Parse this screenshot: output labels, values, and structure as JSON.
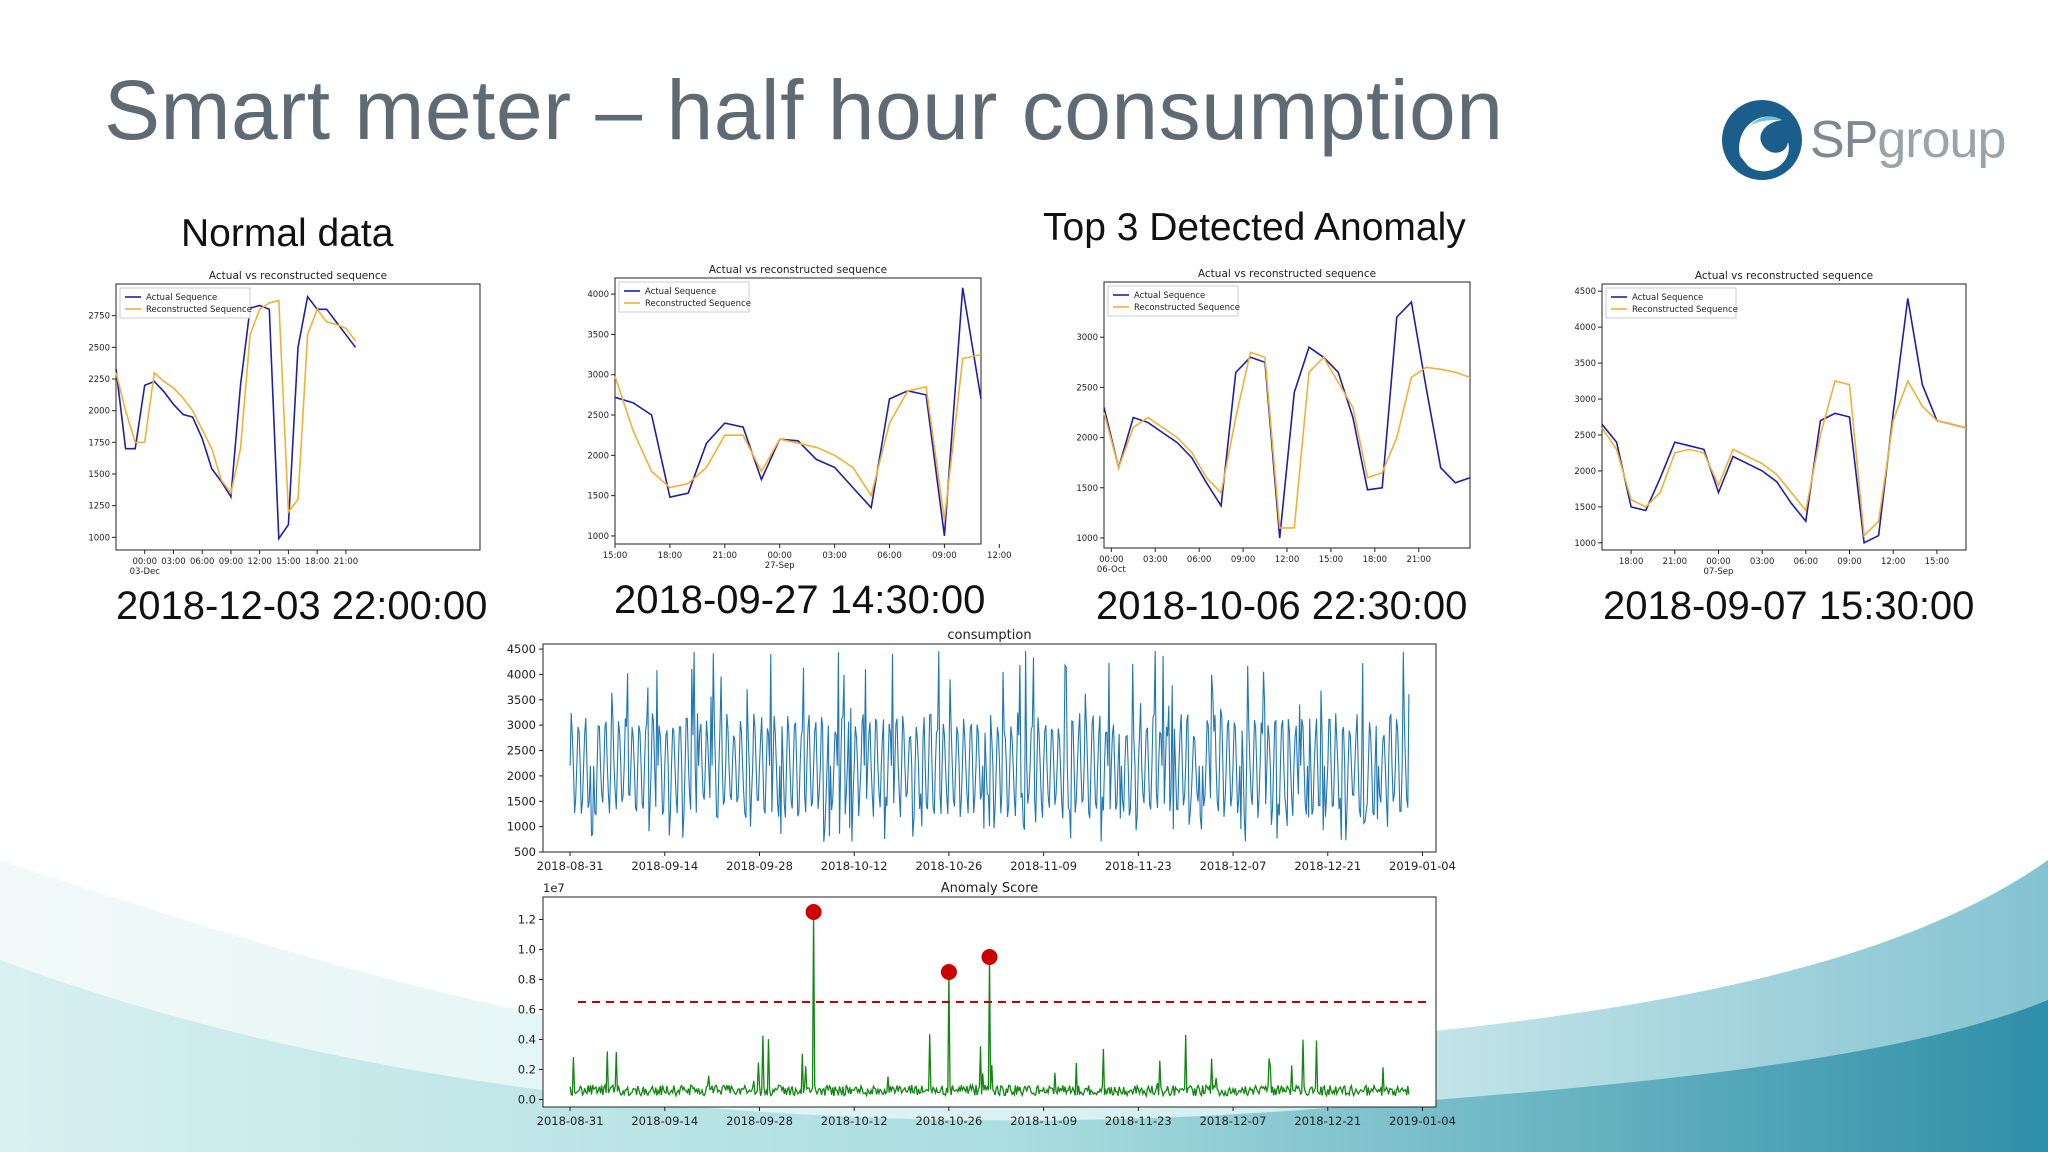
{
  "slide": {
    "title": "Smart meter – half hour consumption",
    "logo_text_sp": "SP",
    "logo_text_group": "group",
    "normal_heading": "Normal data",
    "anomaly_heading": "Top 3 Detected Anomaly"
  },
  "colors": {
    "actual": "#1f1fa8",
    "reconstructed": "#f2b134",
    "consumption": "#1f77b4",
    "score": "#118811",
    "threshold": "#c00000",
    "marker": "#cc0000",
    "title_text": "#5f6b74",
    "wave": "#3ab0b8"
  },
  "chart_data": [
    {
      "type": "line",
      "title": "Actual vs reconstructed sequence",
      "caption": "2018-12-03 22:00:00",
      "legend": [
        "Actual Sequence",
        "Reconstructed Sequence"
      ],
      "legend_position": "top-left",
      "ylim": [
        900,
        3000
      ],
      "yticks": [
        1000,
        1250,
        1500,
        1750,
        2000,
        2250,
        2500,
        2750
      ],
      "xlim": [
        0,
        76
      ],
      "xticks": [
        {
          "x": 6,
          "label": "00:00",
          "sub": "03-Dec"
        },
        {
          "x": 12,
          "label": "03:00"
        },
        {
          "x": 18,
          "label": "06:00"
        },
        {
          "x": 24,
          "label": "09:00"
        },
        {
          "x": 30,
          "label": "12:00"
        },
        {
          "x": 36,
          "label": "15:00"
        },
        {
          "x": 42,
          "label": "18:00"
        },
        {
          "x": 48,
          "label": "21:00"
        }
      ],
      "series": [
        {
          "name": "Actual Sequence",
          "x": [
            0,
            2,
            4,
            6,
            8,
            10,
            12,
            14,
            16,
            18,
            20,
            22,
            24,
            26,
            28,
            30,
            32,
            34,
            36,
            38,
            40,
            42,
            44,
            46,
            48,
            50
          ],
          "y": [
            2330,
            1700,
            1700,
            2200,
            2230,
            2150,
            2050,
            1970,
            1950,
            1780,
            1540,
            1440,
            1320,
            2200,
            2810,
            2830,
            2800,
            990,
            1100,
            2500,
            2900,
            2800,
            2800,
            2700,
            2600,
            2500
          ]
        },
        {
          "name": "Reconstructed Sequence",
          "x": [
            0,
            2,
            4,
            6,
            8,
            10,
            12,
            14,
            16,
            18,
            20,
            22,
            24,
            26,
            28,
            30,
            32,
            34,
            36,
            38,
            40,
            42,
            44,
            46,
            48,
            50
          ],
          "y": [
            2300,
            2000,
            1750,
            1750,
            2300,
            2230,
            2180,
            2100,
            2000,
            1850,
            1700,
            1450,
            1350,
            1700,
            2600,
            2800,
            2850,
            2870,
            1200,
            1300,
            2600,
            2800,
            2700,
            2680,
            2650,
            2550
          ]
        }
      ]
    },
    {
      "type": "line",
      "title": "Actual vs reconstructed sequence",
      "caption": "2018-09-27 14:30:00",
      "legend": [
        "Actual Sequence",
        "Reconstructed Sequence"
      ],
      "legend_position": "top-left",
      "ylim": [
        900,
        4200
      ],
      "yticks": [
        1000,
        1500,
        2000,
        2500,
        3000,
        3500,
        4000
      ],
      "xlim": [
        0,
        40
      ],
      "xticks": [
        {
          "x": 0,
          "label": "15:00"
        },
        {
          "x": 6,
          "label": "18:00"
        },
        {
          "x": 12,
          "label": "21:00"
        },
        {
          "x": 18,
          "label": "00:00",
          "sub": "27-Sep"
        },
        {
          "x": 24,
          "label": "03:00"
        },
        {
          "x": 30,
          "label": "06:00"
        },
        {
          "x": 36,
          "label": "09:00"
        },
        {
          "x": 42,
          "label": "12:00"
        }
      ],
      "series": [
        {
          "name": "Actual Sequence",
          "x": [
            0,
            2,
            4,
            6,
            8,
            10,
            12,
            14,
            16,
            18,
            20,
            22,
            24,
            26,
            28,
            30,
            32,
            34,
            36,
            38,
            40
          ],
          "y": [
            2720,
            2650,
            2500,
            1480,
            1530,
            2150,
            2400,
            2350,
            1700,
            2200,
            2180,
            1950,
            1850,
            1600,
            1350,
            2700,
            2800,
            2750,
            1000,
            4080,
            2700
          ]
        },
        {
          "name": "Reconstructed Sequence",
          "x": [
            0,
            2,
            4,
            6,
            8,
            10,
            12,
            14,
            16,
            18,
            20,
            22,
            24,
            26,
            28,
            30,
            32,
            34,
            36,
            38,
            40
          ],
          "y": [
            2980,
            2300,
            1800,
            1600,
            1650,
            1850,
            2250,
            2250,
            1800,
            2200,
            2150,
            2100,
            2000,
            1850,
            1500,
            2400,
            2800,
            2850,
            1200,
            3200,
            3250
          ]
        }
      ]
    },
    {
      "type": "line",
      "title": "Actual vs reconstructed sequence",
      "caption": "2018-10-06 22:30:00",
      "legend": [
        "Actual Sequence",
        "Reconstructed Sequence"
      ],
      "legend_position": "top-left",
      "ylim": [
        900,
        3550
      ],
      "yticks": [
        1000,
        1500,
        2000,
        2500,
        3000
      ],
      "xlim": [
        0,
        50
      ],
      "xticks": [
        {
          "x": 1,
          "label": "00:00",
          "sub": "06-Oct"
        },
        {
          "x": 7,
          "label": "03:00"
        },
        {
          "x": 13,
          "label": "06:00"
        },
        {
          "x": 19,
          "label": "09:00"
        },
        {
          "x": 25,
          "label": "12:00"
        },
        {
          "x": 31,
          "label": "15:00"
        },
        {
          "x": 37,
          "label": "18:00"
        },
        {
          "x": 43,
          "label": "21:00"
        }
      ],
      "series": [
        {
          "name": "Actual Sequence",
          "x": [
            0,
            2,
            4,
            6,
            8,
            10,
            12,
            14,
            16,
            18,
            20,
            22,
            24,
            26,
            28,
            30,
            32,
            34,
            36,
            38,
            40,
            42,
            44,
            46,
            48,
            50
          ],
          "y": [
            2300,
            1700,
            2200,
            2150,
            2050,
            1950,
            1800,
            1550,
            1320,
            2650,
            2800,
            2750,
            1000,
            2450,
            2900,
            2800,
            2650,
            2200,
            1480,
            1500,
            3200,
            3350,
            2500,
            1700,
            1550,
            1600
          ]
        },
        {
          "name": "Reconstructed Sequence",
          "x": [
            0,
            2,
            4,
            6,
            8,
            10,
            12,
            14,
            16,
            18,
            20,
            22,
            24,
            26,
            28,
            30,
            32,
            34,
            36,
            38,
            40,
            42,
            44,
            46,
            48,
            50
          ],
          "y": [
            2250,
            1700,
            2100,
            2200,
            2100,
            2000,
            1850,
            1600,
            1450,
            2200,
            2850,
            2800,
            1100,
            1100,
            2650,
            2800,
            2550,
            2300,
            1600,
            1650,
            2000,
            2600,
            2700,
            2680,
            2650,
            2600
          ]
        }
      ]
    },
    {
      "type": "line",
      "title": "Actual vs reconstructed sequence",
      "caption": "2018-09-07 15:30:00",
      "legend": [
        "Actual Sequence",
        "Reconstructed Sequence"
      ],
      "legend_position": "top-left",
      "ylim": [
        900,
        4600
      ],
      "yticks": [
        1000,
        1500,
        2000,
        2500,
        3000,
        3500,
        4000,
        4500
      ],
      "xlim": [
        0,
        50
      ],
      "xticks": [
        {
          "x": 4,
          "label": "18:00"
        },
        {
          "x": 10,
          "label": "21:00"
        },
        {
          "x": 16,
          "label": "00:00",
          "sub": "07-Sep"
        },
        {
          "x": 22,
          "label": "03:00"
        },
        {
          "x": 28,
          "label": "06:00"
        },
        {
          "x": 34,
          "label": "09:00"
        },
        {
          "x": 40,
          "label": "12:00"
        },
        {
          "x": 46,
          "label": "15:00"
        }
      ],
      "series": [
        {
          "name": "Actual Sequence",
          "x": [
            0,
            2,
            4,
            6,
            8,
            10,
            12,
            14,
            16,
            18,
            20,
            22,
            24,
            26,
            28,
            30,
            32,
            34,
            36,
            38,
            40,
            42,
            44,
            46,
            48,
            50
          ],
          "y": [
            2650,
            2400,
            1500,
            1450,
            1900,
            2400,
            2350,
            2300,
            1700,
            2200,
            2100,
            2000,
            1850,
            1550,
            1300,
            2700,
            2800,
            2750,
            1000,
            1100,
            2800,
            4400,
            3200,
            2700,
            2650,
            2600
          ]
        },
        {
          "name": "Reconstructed Sequence",
          "x": [
            0,
            2,
            4,
            6,
            8,
            10,
            12,
            14,
            16,
            18,
            20,
            22,
            24,
            26,
            28,
            30,
            32,
            34,
            36,
            38,
            40,
            42,
            44,
            46,
            48,
            50
          ],
          "y": [
            2600,
            2300,
            1600,
            1500,
            1700,
            2250,
            2300,
            2250,
            1800,
            2300,
            2200,
            2100,
            1950,
            1700,
            1450,
            2500,
            3250,
            3200,
            1100,
            1300,
            2700,
            3250,
            2900,
            2700,
            2650,
            2600
          ]
        }
      ]
    },
    {
      "type": "line",
      "title": "consumption",
      "ylim": [
        500,
        4600
      ],
      "yticks": [
        500,
        1000,
        1500,
        2000,
        2500,
        3000,
        3500,
        4000,
        4500
      ],
      "xlim": [
        "2018-08-27",
        "2019-01-06"
      ],
      "xticks": [
        "2018-08-31",
        "2018-09-14",
        "2018-09-28",
        "2018-10-12",
        "2018-10-26",
        "2018-11-09",
        "2018-11-23",
        "2018-12-07",
        "2018-12-21",
        "2019-01-04"
      ],
      "series": [
        {
          "name": "consumption",
          "x_range": [
            "2018-08-31",
            "2019-01-02"
          ],
          "y_min": 700,
          "y_max": 4550,
          "y_typical_low": 1200,
          "y_typical_high": 3200
        }
      ]
    },
    {
      "type": "line",
      "title": "Anomaly Score",
      "yunit": "1e7",
      "ylim": [
        -0.05,
        1.35
      ],
      "yticks": [
        0.0,
        0.2,
        0.4,
        0.6,
        0.8,
        1.0,
        1.2
      ],
      "xlim": [
        "2018-08-27",
        "2019-01-06"
      ],
      "xticks": [
        "2018-08-31",
        "2018-09-14",
        "2018-09-28",
        "2018-10-12",
        "2018-10-26",
        "2018-11-09",
        "2018-11-23",
        "2018-12-07",
        "2018-12-21",
        "2019-01-04"
      ],
      "threshold": 0.65,
      "anomalies": [
        {
          "x": "2018-10-06",
          "y": 1.25
        },
        {
          "x": "2018-10-26",
          "y": 0.85
        },
        {
          "x": "2018-11-01",
          "y": 0.95
        }
      ],
      "series": [
        {
          "name": "Anomaly Score",
          "x_range": [
            "2018-08-31",
            "2019-01-02"
          ],
          "y_baseline": 0.06
        }
      ]
    }
  ]
}
